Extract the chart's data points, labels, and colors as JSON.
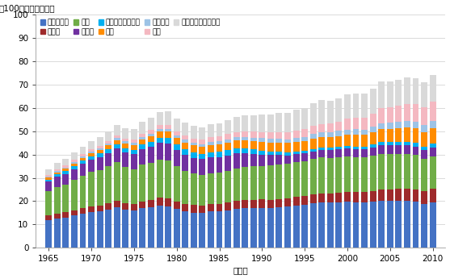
{
  "years": [
    1965,
    1966,
    1967,
    1968,
    1969,
    1970,
    1971,
    1972,
    1973,
    1974,
    1975,
    1976,
    1977,
    1978,
    1979,
    1980,
    1981,
    1982,
    1983,
    1984,
    1985,
    1986,
    1987,
    1988,
    1989,
    1990,
    1991,
    1992,
    1993,
    1994,
    1995,
    1996,
    1997,
    1998,
    1999,
    2000,
    2001,
    2002,
    2003,
    2004,
    2005,
    2006,
    2007,
    2008,
    2009,
    2010
  ],
  "regions": [
    {
      "name": "北アメリカ",
      "color": "#4472C4"
    },
    {
      "name": "中南米",
      "color": "#9E2A2B"
    },
    {
      "name": "欧州",
      "color": "#70AD47"
    },
    {
      "name": "ロシア",
      "color": "#7030A0"
    },
    {
      "name": "その他旧ソ連諸国",
      "color": "#00B0F0"
    },
    {
      "name": "中東",
      "color": "#FF8C00"
    },
    {
      "name": "アフリカ",
      "color": "#9DC3E6"
    },
    {
      "name": "中国",
      "color": "#F4B8C1"
    },
    {
      "name": "アジア（除、中国）",
      "color": "#D9D9D9"
    }
  ],
  "data": {
    "北アメリカ": [
      11.8,
      12.5,
      13.0,
      13.8,
      14.5,
      15.2,
      15.6,
      16.5,
      17.3,
      16.5,
      16.1,
      17.0,
      17.5,
      18.2,
      17.9,
      16.7,
      15.7,
      15.1,
      15.0,
      15.5,
      15.7,
      16.1,
      16.8,
      17.0,
      17.1,
      17.2,
      16.9,
      17.3,
      17.6,
      18.2,
      18.5,
      19.0,
      19.3,
      19.4,
      19.6,
      19.7,
      19.5,
      19.5,
      19.8,
      20.2,
      20.1,
      20.2,
      20.1,
      19.7,
      18.9,
      19.5
    ],
    "中南米": [
      2.0,
      2.1,
      2.2,
      2.3,
      2.4,
      2.5,
      2.6,
      2.7,
      2.8,
      2.7,
      2.7,
      2.9,
      3.0,
      3.2,
      3.3,
      3.2,
      3.2,
      3.2,
      3.1,
      3.1,
      3.1,
      3.2,
      3.3,
      3.4,
      3.5,
      3.5,
      3.6,
      3.7,
      3.6,
      3.6,
      3.7,
      3.8,
      4.0,
      4.0,
      4.1,
      4.2,
      4.3,
      4.3,
      4.5,
      4.8,
      4.9,
      5.0,
      5.2,
      5.4,
      5.4,
      5.7
    ],
    "欧州": [
      10.5,
      11.5,
      12.0,
      13.0,
      14.0,
      14.8,
      15.1,
      15.8,
      16.5,
      15.5,
      15.0,
      15.8,
      16.0,
      16.5,
      16.3,
      15.0,
      14.0,
      13.5,
      13.2,
      13.4,
      13.5,
      13.8,
      14.0,
      14.2,
      14.5,
      14.5,
      14.8,
      14.8,
      14.8,
      15.0,
      15.0,
      15.2,
      15.4,
      15.2,
      15.2,
      15.3,
      15.2,
      15.0,
      15.1,
      15.3,
      15.2,
      15.1,
      15.0,
      14.7,
      13.8,
      14.0
    ],
    "ロシア": [
      4.0,
      4.3,
      4.5,
      4.7,
      5.0,
      5.2,
      5.5,
      5.7,
      6.0,
      6.2,
      6.3,
      6.5,
      6.8,
      7.0,
      7.2,
      7.0,
      7.0,
      6.8,
      6.7,
      6.7,
      6.6,
      6.5,
      6.3,
      5.8,
      5.2,
      4.8,
      4.5,
      4.1,
      3.7,
      3.5,
      3.3,
      3.4,
      3.4,
      3.3,
      3.3,
      3.4,
      3.4,
      3.5,
      3.7,
      3.8,
      3.7,
      3.7,
      3.7,
      3.7,
      3.7,
      3.8
    ],
    "その他旧ソ連諸国": [
      1.0,
      1.1,
      1.2,
      1.3,
      1.4,
      1.5,
      1.6,
      1.7,
      1.8,
      1.9,
      2.0,
      2.1,
      2.2,
      2.3,
      2.4,
      2.4,
      2.4,
      2.3,
      2.3,
      2.3,
      2.3,
      2.2,
      2.2,
      2.1,
      1.9,
      1.7,
      1.5,
      1.3,
      1.1,
      1.0,
      1.0,
      1.0,
      1.0,
      1.0,
      1.0,
      1.0,
      1.1,
      1.1,
      1.2,
      1.3,
      1.4,
      1.4,
      1.5,
      1.5,
      1.5,
      1.6
    ],
    "中東": [
      0.8,
      0.9,
      1.0,
      1.1,
      1.2,
      1.3,
      1.4,
      1.5,
      1.7,
      1.8,
      2.0,
      2.2,
      2.4,
      2.6,
      2.8,
      2.8,
      2.9,
      3.0,
      3.0,
      3.1,
      3.2,
      3.3,
      3.4,
      3.5,
      3.6,
      3.7,
      3.9,
      4.0,
      4.1,
      4.2,
      4.3,
      4.5,
      4.5,
      4.6,
      4.8,
      5.0,
      5.1,
      5.1,
      5.3,
      5.6,
      5.8,
      6.0,
      6.2,
      6.4,
      6.4,
      6.7
    ],
    "アフリカ": [
      0.5,
      0.6,
      0.6,
      0.7,
      0.7,
      0.8,
      0.8,
      0.9,
      1.0,
      1.0,
      1.0,
      1.1,
      1.1,
      1.2,
      1.2,
      1.2,
      1.2,
      1.2,
      1.2,
      1.3,
      1.3,
      1.4,
      1.4,
      1.5,
      1.5,
      1.6,
      1.6,
      1.7,
      1.7,
      1.7,
      1.8,
      1.9,
      2.0,
      2.0,
      2.1,
      2.1,
      2.2,
      2.2,
      2.3,
      2.4,
      2.5,
      2.6,
      2.7,
      2.8,
      2.9,
      3.0
    ],
    "中国": [
      0.7,
      0.8,
      0.8,
      0.8,
      0.9,
      1.0,
      1.0,
      1.0,
      1.1,
      1.2,
      1.3,
      1.4,
      1.5,
      1.6,
      1.7,
      1.7,
      1.8,
      1.8,
      1.9,
      2.0,
      2.1,
      2.2,
      2.3,
      2.5,
      2.6,
      2.7,
      2.7,
      2.8,
      2.9,
      3.0,
      3.2,
      3.4,
      3.5,
      3.7,
      3.9,
      4.7,
      4.9,
      5.0,
      5.5,
      6.5,
      6.7,
      7.0,
      7.2,
      7.4,
      7.8,
      8.5
    ],
    "アジア（除、中国）": [
      2.5,
      2.7,
      2.9,
      3.1,
      3.4,
      3.6,
      3.8,
      4.1,
      4.5,
      4.5,
      4.6,
      4.9,
      5.2,
      5.5,
      5.7,
      5.6,
      5.5,
      5.4,
      5.4,
      5.6,
      5.7,
      6.0,
      6.3,
      6.7,
      7.0,
      7.4,
      7.7,
      8.0,
      8.3,
      8.9,
      9.3,
      9.7,
      10.2,
      10.0,
      10.2,
      10.4,
      10.4,
      10.4,
      10.7,
      11.3,
      11.0,
      11.1,
      11.4,
      11.3,
      10.7,
      11.3
    ]
  },
  "legend_row1": [
    "北アメリカ",
    "中南米",
    "欧州",
    "ロシア",
    "その他旧ソ連諸国"
  ],
  "legend_row2": [
    "中東",
    "アフリカ",
    "中国",
    "アジア（除、中国）"
  ],
  "ylabel": "（100万バレル／日）",
  "xlabel": "（年）",
  "ylim": [
    0,
    100
  ],
  "yticks": [
    0,
    10,
    20,
    30,
    40,
    50,
    60,
    70,
    80,
    90,
    100
  ],
  "xticks": [
    1965,
    1970,
    1975,
    1980,
    1985,
    1990,
    1995,
    2000,
    2005,
    2010
  ],
  "background_color": "#ffffff"
}
